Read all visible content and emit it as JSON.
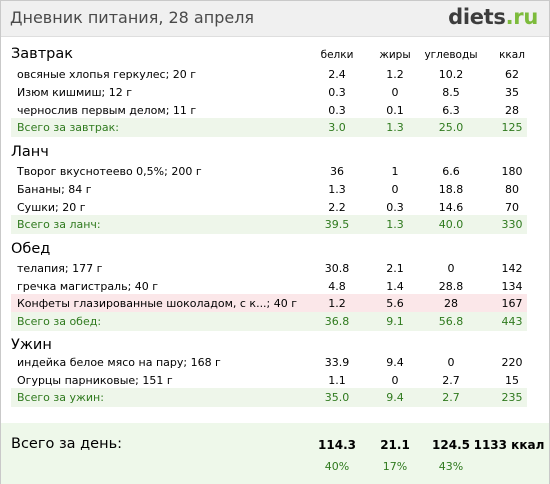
{
  "header": {
    "title": "Дневник питания, 28 апреля",
    "logo_main": "diets",
    "logo_suffix": ".ru"
  },
  "columns": {
    "protein": "белки",
    "fat": "жиры",
    "carbs": "углеводы",
    "kcal": "ккал"
  },
  "meals": [
    {
      "title": "Завтрак",
      "rows": [
        {
          "name": "овсяные хлопья геркулес; 20 г",
          "protein": "2.4",
          "fat": "1.2",
          "carbs": "10.2",
          "kcal": "62"
        },
        {
          "name": "Изюм кишмиш; 12 г",
          "protein": "0.3",
          "fat": "0",
          "carbs": "8.5",
          "kcal": "35"
        },
        {
          "name": "чернослив первым делом; 11 г",
          "protein": "0.3",
          "fat": "0.1",
          "carbs": "6.3",
          "kcal": "28"
        }
      ],
      "total": {
        "name": "Всего за завтрак:",
        "protein": "3.0",
        "fat": "1.3",
        "carbs": "25.0",
        "kcal": "125"
      }
    },
    {
      "title": "Ланч",
      "rows": [
        {
          "name": "Творог вкуснотеево 0,5%; 200 г",
          "protein": "36",
          "fat": "1",
          "carbs": "6.6",
          "kcal": "180"
        },
        {
          "name": "Бананы; 84 г",
          "protein": "1.3",
          "fat": "0",
          "carbs": "18.8",
          "kcal": "80"
        },
        {
          "name": "Сушки; 20 г",
          "protein": "2.2",
          "fat": "0.3",
          "carbs": "14.6",
          "kcal": "70"
        }
      ],
      "total": {
        "name": "Всего за ланч:",
        "protein": "39.5",
        "fat": "1.3",
        "carbs": "40.0",
        "kcal": "330"
      }
    },
    {
      "title": "Обед",
      "rows": [
        {
          "name": "телапия; 177 г",
          "protein": "30.8",
          "fat": "2.1",
          "carbs": "0",
          "kcal": "142"
        },
        {
          "name": "гречка магистраль; 40 г",
          "protein": "4.8",
          "fat": "1.4",
          "carbs": "28.8",
          "kcal": "134"
        },
        {
          "name": "Конфеты глазированные шоколадом, с к...; 40 г",
          "protein": "1.2",
          "fat": "5.6",
          "carbs": "28",
          "kcal": "167"
        }
      ],
      "total": {
        "name": "Всего за обед:",
        "protein": "36.8",
        "fat": "9.1",
        "carbs": "56.8",
        "kcal": "443"
      }
    },
    {
      "title": "Ужин",
      "rows": [
        {
          "name": "индейка белое мясо на пару; 168 г",
          "protein": "33.9",
          "fat": "9.4",
          "carbs": "0",
          "kcal": "220"
        },
        {
          "name": "Огурцы парниковые; 151 г",
          "protein": "1.1",
          "fat": "0",
          "carbs": "2.7",
          "kcal": "15"
        }
      ],
      "total": {
        "name": "Всего за ужин:",
        "protein": "35.0",
        "fat": "9.4",
        "carbs": "2.7",
        "kcal": "235"
      }
    }
  ],
  "day": {
    "label": "Всего за день:",
    "protein": "114.3",
    "fat": "21.1",
    "carbs": "124.5",
    "kcal": "1133 ккал",
    "protein_pct": "40%",
    "fat_pct": "17%",
    "carbs_pct": "43%"
  }
}
